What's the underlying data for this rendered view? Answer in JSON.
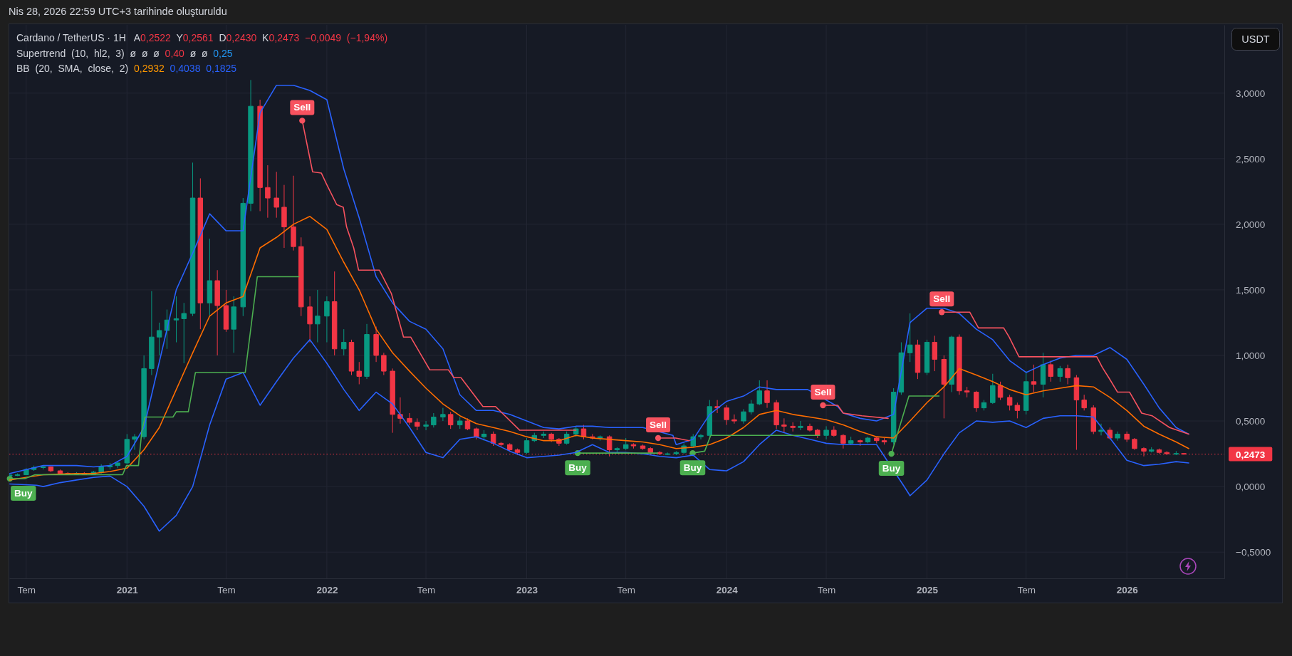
{
  "chart_data": {
    "type": "candlestick",
    "title": "Cardano / TetherUS · 1H",
    "ylabel": "USDT",
    "annotations": [
      "Nis 28, 2026 22:59 UTC+3 tarihinde oluşturuldu",
      "A0,2522 Y0,2561 D0,2430 K0,2473 −0,0049 (−1,94%)",
      "Supertrend (10, hl2, 3) ø ø ø 0,40 ø ø 0,25",
      "BB (20, SMA, close, 2) 0,2932 0,4038 0,1825"
    ],
    "xlim": [
      "2020-05-31",
      "2026-06-28"
    ],
    "ylim": [
      -0.7,
      3.52
    ],
    "xticks": [
      {
        "value": "2020-07-01",
        "label": "Tem"
      },
      {
        "value": "2021-01-01",
        "label": "2021"
      },
      {
        "value": "2021-07-01",
        "label": "Tem"
      },
      {
        "value": "2022-01-01",
        "label": "2022"
      },
      {
        "value": "2022-07-01",
        "label": "Tem"
      },
      {
        "value": "2023-01-01",
        "label": "2023"
      },
      {
        "value": "2023-07-01",
        "label": "Tem"
      },
      {
        "value": "2024-01-01",
        "label": "2024"
      },
      {
        "value": "2024-07-01",
        "label": "Tem"
      },
      {
        "value": "2025-01-01",
        "label": "2025"
      },
      {
        "value": "2025-07-01",
        "label": "Tem"
      },
      {
        "value": "2026-01-01",
        "label": "2026"
      }
    ],
    "yticks": [
      {
        "value": -0.5,
        "label": "−0,5000"
      },
      {
        "value": 0,
        "label": "0,0000"
      },
      {
        "value": 0.5,
        "label": "0,5000"
      },
      {
        "value": 1,
        "label": "1,0000"
      },
      {
        "value": 1.5,
        "label": "1,5000"
      },
      {
        "value": 2,
        "label": "2,0000"
      },
      {
        "value": 2.5,
        "label": "2,5000"
      },
      {
        "value": 3,
        "label": "3,0000"
      }
    ],
    "grid": true,
    "ref_lines": [
      {
        "axis": "y",
        "value": 0.2473,
        "label": "0,2473",
        "color": "#f23645",
        "line_style": "dotted"
      }
    ],
    "x": [
      "2020-06-01",
      "2020-06-15",
      "2020-07-01",
      "2020-07-15",
      "2020-08-01",
      "2020-08-15",
      "2020-09-01",
      "2020-09-15",
      "2020-10-01",
      "2020-10-15",
      "2020-11-01",
      "2020-11-15",
      "2020-12-01",
      "2020-12-15",
      "2021-01-01",
      "2021-01-15",
      "2021-02-01",
      "2021-02-15",
      "2021-03-01",
      "2021-03-15",
      "2021-04-01",
      "2021-04-15",
      "2021-05-01",
      "2021-05-15",
      "2021-06-01",
      "2021-06-15",
      "2021-07-01",
      "2021-07-15",
      "2021-08-01",
      "2021-08-15",
      "2021-09-01",
      "2021-09-15",
      "2021-10-01",
      "2021-10-15",
      "2021-11-01",
      "2021-11-15",
      "2021-12-01",
      "2021-12-15",
      "2022-01-01",
      "2022-01-15",
      "2022-02-01",
      "2022-02-15",
      "2022-03-01",
      "2022-03-15",
      "2022-04-01",
      "2022-04-15",
      "2022-05-01",
      "2022-05-15",
      "2022-06-01",
      "2022-06-15",
      "2022-07-01",
      "2022-07-15",
      "2022-08-01",
      "2022-08-15",
      "2022-09-01",
      "2022-09-15",
      "2022-10-01",
      "2022-10-15",
      "2022-11-01",
      "2022-11-15",
      "2022-12-01",
      "2022-12-15",
      "2023-01-01",
      "2023-01-15",
      "2023-02-01",
      "2023-02-15",
      "2023-03-01",
      "2023-03-15",
      "2023-04-01",
      "2023-04-15",
      "2023-05-01",
      "2023-05-15",
      "2023-06-01",
      "2023-06-15",
      "2023-07-01",
      "2023-07-15",
      "2023-08-01",
      "2023-08-15",
      "2023-09-01",
      "2023-09-15",
      "2023-10-01",
      "2023-10-15",
      "2023-11-01",
      "2023-11-15",
      "2023-12-01",
      "2023-12-15",
      "2024-01-01",
      "2024-01-15",
      "2024-02-01",
      "2024-02-15",
      "2024-03-01",
      "2024-03-15",
      "2024-04-01",
      "2024-04-15",
      "2024-05-01",
      "2024-05-15",
      "2024-06-01",
      "2024-06-15",
      "2024-07-01",
      "2024-07-15",
      "2024-08-01",
      "2024-08-15",
      "2024-09-01",
      "2024-09-15",
      "2024-10-01",
      "2024-10-15",
      "2024-11-01",
      "2024-11-15",
      "2024-12-01",
      "2024-12-15",
      "2025-01-01",
      "2025-01-15",
      "2025-02-01",
      "2025-02-15",
      "2025-03-01",
      "2025-03-15",
      "2025-04-01",
      "2025-04-15",
      "2025-05-01",
      "2025-05-15",
      "2025-06-01",
      "2025-06-15",
      "2025-07-01",
      "2025-07-15",
      "2025-08-01",
      "2025-08-15",
      "2025-09-01",
      "2025-09-15",
      "2025-10-01",
      "2025-10-15",
      "2025-11-01",
      "2025-11-15",
      "2025-12-01",
      "2025-12-15",
      "2026-01-01",
      "2026-01-15",
      "2026-02-01",
      "2026-02-15",
      "2026-03-01",
      "2026-03-15",
      "2026-04-01",
      "2026-04-15"
    ],
    "ohlc": [
      [
        0.085,
        0.095,
        0.078,
        0.088
      ],
      [
        0.088,
        0.1,
        0.08,
        0.09
      ],
      [
        0.09,
        0.14,
        0.088,
        0.13
      ],
      [
        0.13,
        0.16,
        0.12,
        0.145
      ],
      [
        0.145,
        0.16,
        0.13,
        0.15
      ],
      [
        0.15,
        0.155,
        0.11,
        0.12
      ],
      [
        0.12,
        0.13,
        0.09,
        0.1
      ],
      [
        0.1,
        0.11,
        0.09,
        0.095
      ],
      [
        0.095,
        0.11,
        0.09,
        0.1
      ],
      [
        0.1,
        0.11,
        0.09,
        0.095
      ],
      [
        0.095,
        0.12,
        0.09,
        0.11
      ],
      [
        0.11,
        0.17,
        0.1,
        0.15
      ],
      [
        0.15,
        0.18,
        0.13,
        0.16
      ],
      [
        0.16,
        0.19,
        0.14,
        0.18
      ],
      [
        0.18,
        0.4,
        0.17,
        0.36
      ],
      [
        0.36,
        0.4,
        0.28,
        0.38
      ],
      [
        0.38,
        1.0,
        0.36,
        0.9
      ],
      [
        0.9,
        1.49,
        0.85,
        1.14
      ],
      [
        1.14,
        1.25,
        1.0,
        1.19
      ],
      [
        1.19,
        1.35,
        1.05,
        1.27
      ],
      [
        1.27,
        1.45,
        1.1,
        1.28
      ],
      [
        1.28,
        1.4,
        0.94,
        1.32
      ],
      [
        1.32,
        2.47,
        1.3,
        2.2
      ],
      [
        2.2,
        2.35,
        1.2,
        1.4
      ],
      [
        1.4,
        1.89,
        1.3,
        1.57
      ],
      [
        1.57,
        1.65,
        1.0,
        1.38
      ],
      [
        1.38,
        1.5,
        1.18,
        1.2
      ],
      [
        1.2,
        1.45,
        1.02,
        1.37
      ],
      [
        1.37,
        2.2,
        1.3,
        2.16
      ],
      [
        2.16,
        3.1,
        2.1,
        2.9
      ],
      [
        2.9,
        2.95,
        2.1,
        2.28
      ],
      [
        2.28,
        2.45,
        2.05,
        2.2
      ],
      [
        2.2,
        2.4,
        2.05,
        2.13
      ],
      [
        2.13,
        2.3,
        1.82,
        1.98
      ],
      [
        1.98,
        2.37,
        1.8,
        1.83
      ],
      [
        1.83,
        1.9,
        1.3,
        1.37
      ],
      [
        1.37,
        1.45,
        1.1,
        1.24
      ],
      [
        1.24,
        1.5,
        1.1,
        1.3
      ],
      [
        1.3,
        1.45,
        1.1,
        1.41
      ],
      [
        1.41,
        1.64,
        1.0,
        1.05
      ],
      [
        1.05,
        1.2,
        1.0,
        1.1
      ],
      [
        1.1,
        1.12,
        0.85,
        0.88
      ],
      [
        0.88,
        0.95,
        0.78,
        0.84
      ],
      [
        0.84,
        1.24,
        0.82,
        1.16
      ],
      [
        1.16,
        1.22,
        0.95,
        1.0
      ],
      [
        1.0,
        1.02,
        0.85,
        0.88
      ],
      [
        0.88,
        0.9,
        0.41,
        0.55
      ],
      [
        0.55,
        0.68,
        0.48,
        0.52
      ],
      [
        0.52,
        0.56,
        0.47,
        0.49
      ],
      [
        0.49,
        0.52,
        0.43,
        0.46
      ],
      [
        0.46,
        0.5,
        0.43,
        0.47
      ],
      [
        0.47,
        0.56,
        0.45,
        0.53
      ],
      [
        0.53,
        0.6,
        0.5,
        0.55
      ],
      [
        0.55,
        0.57,
        0.44,
        0.47
      ],
      [
        0.47,
        0.53,
        0.44,
        0.5
      ],
      [
        0.5,
        0.52,
        0.43,
        0.44
      ],
      [
        0.44,
        0.45,
        0.36,
        0.38
      ],
      [
        0.38,
        0.43,
        0.35,
        0.4
      ],
      [
        0.4,
        0.42,
        0.31,
        0.33
      ],
      [
        0.33,
        0.34,
        0.3,
        0.32
      ],
      [
        0.32,
        0.33,
        0.27,
        0.28
      ],
      [
        0.28,
        0.29,
        0.24,
        0.26
      ],
      [
        0.26,
        0.37,
        0.25,
        0.35
      ],
      [
        0.35,
        0.41,
        0.34,
        0.39
      ],
      [
        0.39,
        0.42,
        0.37,
        0.4
      ],
      [
        0.4,
        0.41,
        0.34,
        0.36
      ],
      [
        0.36,
        0.37,
        0.31,
        0.33
      ],
      [
        0.33,
        0.42,
        0.32,
        0.4
      ],
      [
        0.4,
        0.46,
        0.38,
        0.44
      ],
      [
        0.44,
        0.47,
        0.36,
        0.38
      ],
      [
        0.38,
        0.4,
        0.36,
        0.37
      ],
      [
        0.37,
        0.39,
        0.35,
        0.38
      ],
      [
        0.38,
        0.39,
        0.23,
        0.28
      ],
      [
        0.28,
        0.3,
        0.26,
        0.29
      ],
      [
        0.29,
        0.37,
        0.28,
        0.32
      ],
      [
        0.32,
        0.33,
        0.29,
        0.31
      ],
      [
        0.31,
        0.32,
        0.28,
        0.29
      ],
      [
        0.29,
        0.3,
        0.25,
        0.26
      ],
      [
        0.26,
        0.27,
        0.24,
        0.25
      ],
      [
        0.25,
        0.26,
        0.24,
        0.25
      ],
      [
        0.25,
        0.27,
        0.24,
        0.26
      ],
      [
        0.26,
        0.33,
        0.25,
        0.31
      ],
      [
        0.31,
        0.4,
        0.3,
        0.38
      ],
      [
        0.38,
        0.4,
        0.36,
        0.39
      ],
      [
        0.39,
        0.66,
        0.38,
        0.61
      ],
      [
        0.61,
        0.66,
        0.56,
        0.6
      ],
      [
        0.6,
        0.62,
        0.47,
        0.51
      ],
      [
        0.51,
        0.55,
        0.48,
        0.5
      ],
      [
        0.5,
        0.59,
        0.48,
        0.57
      ],
      [
        0.57,
        0.66,
        0.55,
        0.63
      ],
      [
        0.63,
        0.81,
        0.62,
        0.73
      ],
      [
        0.73,
        0.81,
        0.6,
        0.64
      ],
      [
        0.64,
        0.66,
        0.44,
        0.47
      ],
      [
        0.47,
        0.52,
        0.41,
        0.46
      ],
      [
        0.46,
        0.49,
        0.42,
        0.45
      ],
      [
        0.45,
        0.5,
        0.43,
        0.46
      ],
      [
        0.46,
        0.48,
        0.42,
        0.43
      ],
      [
        0.43,
        0.44,
        0.37,
        0.39
      ],
      [
        0.39,
        0.46,
        0.36,
        0.43
      ],
      [
        0.43,
        0.46,
        0.38,
        0.39
      ],
      [
        0.39,
        0.4,
        0.29,
        0.33
      ],
      [
        0.33,
        0.38,
        0.32,
        0.35
      ],
      [
        0.35,
        0.36,
        0.31,
        0.34
      ],
      [
        0.34,
        0.38,
        0.33,
        0.37
      ],
      [
        0.37,
        0.38,
        0.33,
        0.35
      ],
      [
        0.35,
        0.37,
        0.32,
        0.34
      ],
      [
        0.34,
        0.75,
        0.32,
        0.72
      ],
      [
        0.72,
        1.1,
        0.7,
        1.02
      ],
      [
        1.02,
        1.32,
        0.95,
        1.08
      ],
      [
        1.08,
        1.12,
        0.82,
        0.87
      ],
      [
        0.87,
        1.12,
        0.85,
        1.1
      ],
      [
        1.1,
        1.15,
        0.88,
        0.97
      ],
      [
        0.97,
        1.0,
        0.52,
        0.78
      ],
      [
        0.78,
        1.15,
        0.72,
        1.14
      ],
      [
        1.14,
        1.16,
        0.7,
        0.73
      ],
      [
        0.73,
        0.76,
        0.68,
        0.72
      ],
      [
        0.72,
        0.73,
        0.57,
        0.6
      ],
      [
        0.6,
        0.66,
        0.58,
        0.64
      ],
      [
        0.64,
        0.86,
        0.63,
        0.77
      ],
      [
        0.77,
        0.8,
        0.66,
        0.68
      ],
      [
        0.68,
        0.7,
        0.58,
        0.62
      ],
      [
        0.62,
        0.64,
        0.52,
        0.58
      ],
      [
        0.58,
        0.88,
        0.55,
        0.8
      ],
      [
        0.8,
        0.93,
        0.72,
        0.78
      ],
      [
        0.78,
        1.02,
        0.68,
        0.93
      ],
      [
        0.93,
        0.96,
        0.8,
        0.84
      ],
      [
        0.84,
        0.92,
        0.8,
        0.9
      ],
      [
        0.9,
        0.93,
        0.78,
        0.83
      ],
      [
        0.83,
        0.85,
        0.28,
        0.66
      ],
      [
        0.66,
        0.7,
        0.58,
        0.6
      ],
      [
        0.6,
        0.62,
        0.4,
        0.42
      ],
      [
        0.42,
        0.48,
        0.39,
        0.43
      ],
      [
        0.43,
        0.45,
        0.36,
        0.37
      ],
      [
        0.37,
        0.42,
        0.35,
        0.4
      ],
      [
        0.4,
        0.42,
        0.34,
        0.36
      ],
      [
        0.36,
        0.37,
        0.28,
        0.29
      ],
      [
        0.29,
        0.3,
        0.23,
        0.27
      ],
      [
        0.27,
        0.3,
        0.26,
        0.28
      ],
      [
        0.28,
        0.29,
        0.25,
        0.26
      ],
      [
        0.26,
        0.27,
        0.24,
        0.25
      ],
      [
        0.25,
        0.27,
        0.24,
        0.2522
      ],
      [
        0.2522,
        0.2561,
        0.243,
        0.2473
      ]
    ],
    "series": [
      {
        "type": "line",
        "color": "#2962ff",
        "x": [
          "2020-06-01",
          "2020-07-01",
          "2020-08-01",
          "2020-09-01",
          "2020-10-01",
          "2020-11-01",
          "2020-12-01",
          "2021-01-01",
          "2021-02-01",
          "2021-03-01",
          "2021-04-01",
          "2021-05-01",
          "2021-06-01",
          "2021-07-01",
          "2021-08-01",
          "2021-09-01",
          "2021-10-01",
          "2021-11-01",
          "2021-12-01",
          "2022-01-01",
          "2022-02-01",
          "2022-03-01",
          "2022-04-01",
          "2022-05-01",
          "2022-06-01",
          "2022-07-01",
          "2022-08-01",
          "2022-09-01",
          "2022-10-01",
          "2022-11-01",
          "2022-12-01",
          "2023-01-01",
          "2023-02-01",
          "2023-03-01",
          "2023-04-01",
          "2023-05-01",
          "2023-06-01",
          "2023-07-01",
          "2023-08-01",
          "2023-09-25",
          "2023-10-01",
          "2023-11-01",
          "2023-12-01",
          "2024-01-01",
          "2024-02-01",
          "2024-03-01",
          "2024-04-01",
          "2024-05-01",
          "2024-05-28",
          "2024-07-22",
          "2024-08-01",
          "2024-09-01",
          "2024-10-01",
          "2024-11-01",
          "2024-12-01",
          "2025-01-01",
          "2025-02-01",
          "2025-03-01",
          "2025-04-01",
          "2025-05-01",
          "2025-06-01",
          "2025-07-01",
          "2025-08-01",
          "2025-09-01",
          "2025-10-01",
          "2025-11-01",
          "2025-12-01",
          "2026-01-01",
          "2026-02-01",
          "2026-03-01",
          "2026-04-01",
          "2026-04-24"
        ],
        "values": [
          0.1,
          0.13,
          0.16,
          0.16,
          0.16,
          0.15,
          0.16,
          0.23,
          0.45,
          0.95,
          1.5,
          1.78,
          2.08,
          1.95,
          1.95,
          2.85,
          3.06,
          3.06,
          3.02,
          2.95,
          2.42,
          2.05,
          1.6,
          1.4,
          1.26,
          1.2,
          1.05,
          0.7,
          0.58,
          0.58,
          0.55,
          0.5,
          0.45,
          0.44,
          0.46,
          0.46,
          0.45,
          0.45,
          0.45,
          0.39,
          0.32,
          0.36,
          0.55,
          0.65,
          0.69,
          0.76,
          0.74,
          0.74,
          0.74,
          0.61,
          0.56,
          0.52,
          0.5,
          0.55,
          1.25,
          1.36,
          1.36,
          1.32,
          1.2,
          1.12,
          0.96,
          0.87,
          0.93,
          0.98,
          1.0,
          1.0,
          1.06,
          0.97,
          0.78,
          0.6,
          0.45,
          0.4
        ]
      },
      {
        "type": "line",
        "color": "#ff6d00",
        "x": [
          "2020-06-01",
          "2020-07-01",
          "2020-08-01",
          "2020-09-01",
          "2020-10-01",
          "2020-11-01",
          "2020-12-01",
          "2021-01-01",
          "2021-02-01",
          "2021-03-01",
          "2021-04-01",
          "2021-05-01",
          "2021-06-01",
          "2021-07-01",
          "2021-08-01",
          "2021-09-01",
          "2021-10-01",
          "2021-11-01",
          "2021-12-01",
          "2022-01-01",
          "2022-02-01",
          "2022-03-01",
          "2022-04-01",
          "2022-05-01",
          "2022-06-01",
          "2022-07-01",
          "2022-08-01",
          "2022-09-01",
          "2022-10-01",
          "2022-11-01",
          "2022-12-01",
          "2023-01-01",
          "2023-02-01",
          "2023-03-01",
          "2023-04-01",
          "2023-05-01",
          "2023-06-01",
          "2023-07-01",
          "2023-08-01",
          "2023-09-01",
          "2023-10-01",
          "2023-11-01",
          "2023-12-01",
          "2024-01-01",
          "2024-02-01",
          "2024-03-01",
          "2024-04-01",
          "2024-05-01",
          "2024-06-01",
          "2024-07-01",
          "2024-08-01",
          "2024-09-01",
          "2024-10-01",
          "2024-11-01",
          "2024-12-01",
          "2025-01-01",
          "2025-02-01",
          "2025-03-01",
          "2025-04-01",
          "2025-05-01",
          "2025-06-01",
          "2025-07-01",
          "2025-08-01",
          "2025-09-01",
          "2025-10-01",
          "2025-11-01",
          "2025-12-01",
          "2026-01-01",
          "2026-02-01",
          "2026-03-01",
          "2026-04-01",
          "2026-04-24"
        ],
        "values": [
          0.05,
          0.07,
          0.09,
          0.095,
          0.1,
          0.1,
          0.115,
          0.14,
          0.28,
          0.45,
          0.74,
          1.02,
          1.3,
          1.4,
          1.45,
          1.82,
          1.9,
          2.0,
          2.06,
          1.96,
          1.71,
          1.5,
          1.2,
          1.02,
          0.88,
          0.75,
          0.63,
          0.54,
          0.48,
          0.45,
          0.42,
          0.38,
          0.35,
          0.35,
          0.39,
          0.37,
          0.36,
          0.35,
          0.34,
          0.32,
          0.29,
          0.3,
          0.32,
          0.37,
          0.45,
          0.55,
          0.58,
          0.55,
          0.53,
          0.51,
          0.47,
          0.42,
          0.38,
          0.37,
          0.5,
          0.64,
          0.76,
          0.9,
          0.85,
          0.8,
          0.74,
          0.7,
          0.73,
          0.75,
          0.77,
          0.76,
          0.68,
          0.58,
          0.46,
          0.4,
          0.34,
          0.29
        ]
      },
      {
        "type": "line",
        "color": "#2962ff",
        "x": [
          "2020-06-01",
          "2020-07-20",
          "2020-08-01",
          "2020-09-01",
          "2020-10-01",
          "2020-11-01",
          "2020-12-01",
          "2021-01-01",
          "2021-02-01",
          "2021-03-01",
          "2021-04-01",
          "2021-05-01",
          "2021-06-01",
          "2021-07-01",
          "2021-08-01",
          "2021-09-01",
          "2021-10-01",
          "2021-11-01",
          "2021-12-01",
          "2022-01-01",
          "2022-02-01",
          "2022-03-01",
          "2022-04-01",
          "2022-05-01",
          "2022-06-01",
          "2022-07-01",
          "2022-08-01",
          "2022-09-01",
          "2022-10-01",
          "2022-11-01",
          "2022-12-01",
          "2023-01-01",
          "2023-02-01",
          "2023-03-01",
          "2023-04-01",
          "2023-05-01",
          "2023-06-01",
          "2023-07-01",
          "2023-08-01",
          "2023-09-01",
          "2023-10-01",
          "2023-11-01",
          "2023-12-01",
          "2024-01-01",
          "2024-02-01",
          "2024-03-01",
          "2024-04-01",
          "2024-05-01",
          "2024-06-01",
          "2024-07-01",
          "2024-08-01",
          "2024-09-01",
          "2024-10-01",
          "2024-11-22",
          "2024-12-01",
          "2025-01-01",
          "2025-02-01",
          "2025-03-01",
          "2025-04-01",
          "2025-05-01",
          "2025-06-01",
          "2025-07-01",
          "2025-08-01",
          "2025-09-01",
          "2025-10-01",
          "2025-11-01",
          "2025-12-01",
          "2026-01-01",
          "2026-02-01",
          "2026-03-01",
          "2026-04-01",
          "2026-04-24"
        ],
        "values": [
          0.02,
          0.01,
          0.0,
          0.03,
          0.05,
          0.07,
          0.08,
          0.0,
          -0.15,
          -0.34,
          -0.22,
          0.0,
          0.47,
          0.82,
          0.87,
          0.62,
          0.8,
          0.98,
          1.12,
          0.94,
          0.74,
          0.58,
          0.72,
          0.63,
          0.45,
          0.26,
          0.22,
          0.36,
          0.38,
          0.33,
          0.27,
          0.22,
          0.23,
          0.24,
          0.26,
          0.32,
          0.26,
          0.26,
          0.25,
          0.23,
          0.22,
          0.24,
          0.13,
          0.12,
          0.19,
          0.32,
          0.43,
          0.39,
          0.36,
          0.33,
          0.32,
          0.32,
          0.32,
          -0.01,
          -0.07,
          0.05,
          0.25,
          0.41,
          0.5,
          0.49,
          0.5,
          0.45,
          0.52,
          0.54,
          0.54,
          0.53,
          0.37,
          0.2,
          0.16,
          0.17,
          0.19,
          0.18
        ]
      },
      {
        "type": "line",
        "color": "#4caf50",
        "x": [
          "2020-06-01",
          "2020-06-28",
          "2020-07-17",
          "2020-12-24",
          "2020-12-31",
          "2021-01-22",
          "2021-01-28",
          "2021-02-03",
          "2021-03-26",
          "2021-04-01",
          "2021-04-23",
          "2021-05-06",
          "2021-08-05",
          "2021-08-27",
          "2021-11-11",
          "2022-06-01",
          "2023-04-04",
          "2023-08-28",
          "2023-09-15",
          "2023-10-31",
          "2023-11-22",
          "2023-12-03",
          "2024-06-19",
          "2024-08-01",
          "2024-10-28",
          "2024-11-29",
          "2025-01-23"
        ],
        "values": [
          0.06,
          0.06,
          0.09,
          0.09,
          0.16,
          0.16,
          0.42,
          0.53,
          0.53,
          0.57,
          0.57,
          0.87,
          0.87,
          1.6,
          1.6,
          null,
          0.255,
          0.255,
          null,
          0.255,
          0.27,
          0.39,
          0.39,
          null,
          0.25,
          0.69,
          0.69
        ]
      },
      {
        "type": "line",
        "color": "#f7525f",
        "x": [
          "2021-11-17",
          "2021-12-06",
          "2021-12-22",
          "2021-12-31",
          "2022-01-19",
          "2022-01-31",
          "2022-02-06",
          "2022-02-19",
          "2022-02-28",
          "2022-04-07",
          "2022-04-29",
          "2022-05-21",
          "2022-06-03",
          "2022-07-08",
          "2022-08-11",
          "2022-08-21",
          "2022-09-03",
          "2022-10-13",
          "2022-11-05",
          "2022-12-19",
          "2023-04-01",
          "2023-06-01",
          "2023-08-29",
          "2023-09-30",
          "2023-10-25",
          "2024-01-01",
          "2024-06-25",
          "2024-07-22",
          "2024-08-01",
          "2024-09-04",
          "2024-10-22",
          "2024-12-01",
          "2025-01-28",
          "2025-03-20",
          "2025-04-05",
          "2025-05-21",
          "2025-05-31",
          "2025-06-18",
          "2025-11-07",
          "2025-11-17",
          "2025-11-29",
          "2025-12-15",
          "2026-01-06",
          "2026-01-28",
          "2026-02-16",
          "2026-03-20",
          "2026-04-24"
        ],
        "values": [
          2.79,
          2.4,
          2.39,
          2.31,
          2.15,
          2.13,
          1.98,
          1.82,
          1.65,
          1.65,
          1.47,
          1.14,
          1.14,
          0.89,
          0.89,
          0.83,
          0.83,
          0.61,
          0.61,
          0.43,
          0.43,
          null,
          0.37,
          0.37,
          0.35,
          null,
          0.62,
          0.62,
          0.56,
          0.54,
          0.52,
          null,
          1.33,
          1.33,
          1.21,
          1.21,
          1.14,
          0.99,
          0.99,
          0.91,
          0.83,
          0.72,
          0.72,
          0.56,
          0.54,
          0.45,
          0.4
        ]
      },
      {
        "type": "scatter",
        "name": "Buy",
        "color": "#4caf50",
        "marker": "circle",
        "x": [
          "2020-06-01",
          "2023-04-04",
          "2023-10-31",
          "2024-10-28"
        ],
        "values": [
          0.06,
          0.255,
          0.255,
          0.25
        ]
      },
      {
        "type": "scatter",
        "name": "Sell",
        "color": "#f7525f",
        "marker": "circle",
        "x": [
          "2021-11-17",
          "2023-08-29",
          "2024-06-25",
          "2025-01-28"
        ],
        "values": [
          2.79,
          0.37,
          0.62,
          1.33
        ]
      }
    ]
  }
}
